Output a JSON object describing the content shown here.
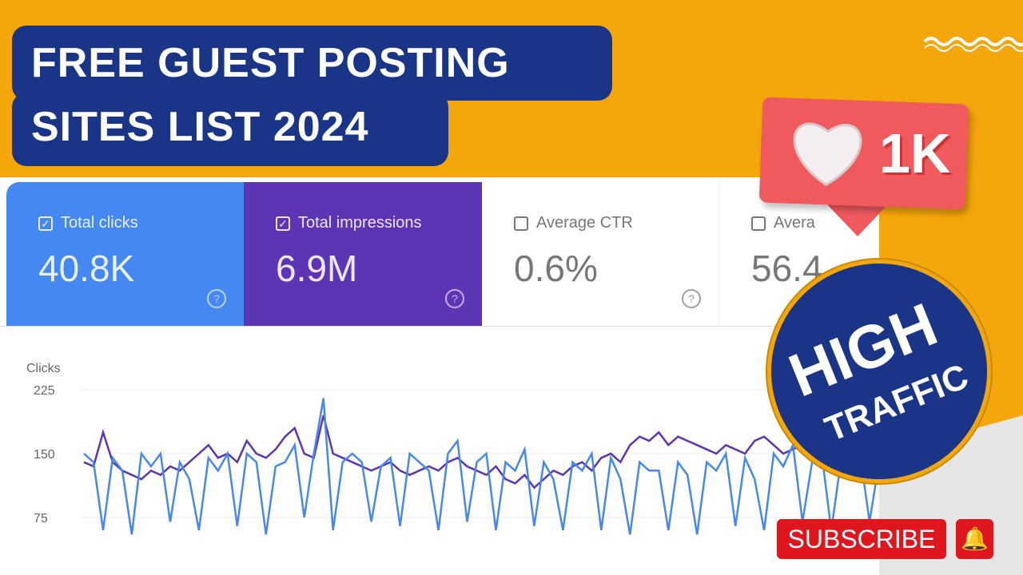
{
  "title": {
    "line1": "FREE GUEST POSTING",
    "line2": "SITES LIST 2024"
  },
  "metrics": [
    {
      "label": "Total clicks",
      "value": "40.8K",
      "checked": true,
      "color": "#4688F1"
    },
    {
      "label": "Total impressions",
      "value": "6.9M",
      "checked": true,
      "color": "#5C35B5"
    },
    {
      "label": "Average CTR",
      "value": "0.6%",
      "checked": false
    },
    {
      "label": "Avera",
      "value": "56.4",
      "checked": false
    }
  ],
  "badge": {
    "likes": "1K",
    "icon": "heart-icon",
    "color": "#F05A5E"
  },
  "circle": {
    "line1": "HIGH",
    "line2": "TRAFFIC",
    "color": "#1A3587"
  },
  "subscribe": {
    "label": "SUBSCRIBE",
    "icon": "bell-icon",
    "color": "#E0161E"
  },
  "chart_data": {
    "type": "line",
    "ylabel": "Clicks",
    "yticks": [
      225,
      150,
      75
    ],
    "ylim": [
      0,
      225
    ],
    "grid": true,
    "series": [
      {
        "color": "#4688F1",
        "values": [
          150,
          140,
          60,
          145,
          130,
          55,
          150,
          135,
          150,
          70,
          140,
          120,
          60,
          145,
          130,
          150,
          65,
          150,
          140,
          55,
          135,
          140,
          160,
          75,
          150,
          215,
          60,
          140,
          150,
          140,
          70,
          135,
          145,
          65,
          150,
          140,
          130,
          60,
          150,
          165,
          70,
          140,
          150,
          60,
          140,
          130,
          155,
          65,
          140,
          120,
          60,
          140,
          130,
          150,
          60,
          145,
          120,
          55,
          140,
          130,
          130,
          60,
          140,
          125,
          55,
          140,
          130,
          150,
          65,
          145,
          120,
          60,
          150,
          135,
          160,
          70,
          140,
          150,
          60,
          140,
          130,
          150,
          70,
          140
        ]
      },
      {
        "color": "#5C35B5",
        "values": [
          140,
          135,
          175,
          140,
          130,
          125,
          120,
          130,
          125,
          135,
          130,
          140,
          150,
          160,
          145,
          150,
          140,
          165,
          150,
          145,
          155,
          170,
          180,
          150,
          145,
          195,
          150,
          145,
          140,
          135,
          130,
          135,
          140,
          130,
          125,
          130,
          135,
          130,
          140,
          145,
          135,
          130,
          125,
          135,
          120,
          115,
          125,
          110,
          120,
          130,
          125,
          135,
          140,
          130,
          145,
          150,
          140,
          160,
          170,
          165,
          175,
          160,
          170,
          165,
          160,
          155,
          150,
          160,
          155,
          150,
          165,
          170,
          160,
          150,
          155,
          160,
          150,
          155,
          165,
          160,
          150,
          155,
          160,
          150
        ]
      }
    ]
  }
}
